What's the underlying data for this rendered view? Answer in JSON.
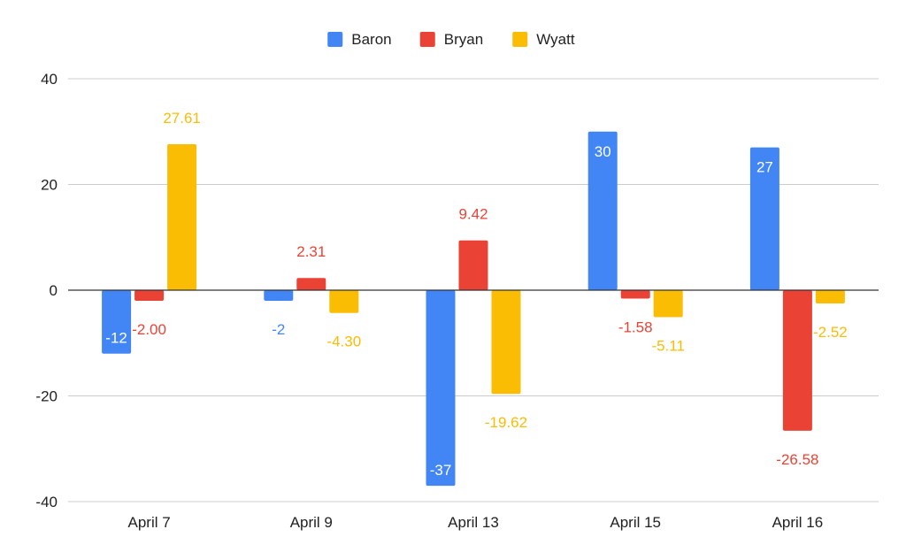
{
  "chart_data": {
    "type": "bar",
    "title": "",
    "xlabel": "",
    "ylabel": "",
    "categories": [
      "April 7",
      "April 9",
      "April 13",
      "April 15",
      "April 16"
    ],
    "series": [
      {
        "name": "Baron",
        "color": "#4285F4",
        "values": [
          -12,
          -2,
          -37,
          30,
          27
        ],
        "labels": [
          "-12",
          "-2",
          "-37",
          "30",
          "27"
        ],
        "label_color": [
          "#ffffff",
          "#4285F4",
          "#ffffff",
          "#ffffff",
          "#ffffff"
        ]
      },
      {
        "name": "Bryan",
        "color": "#EA4335",
        "values": [
          -2.0,
          2.31,
          9.42,
          -1.58,
          -26.58
        ],
        "labels": [
          "-2.00",
          "2.31",
          "9.42",
          "-1.58",
          "-26.58"
        ],
        "label_color": [
          "#EA4335",
          "#EA4335",
          "#EA4335",
          "#EA4335",
          "#EA4335"
        ]
      },
      {
        "name": "Wyatt",
        "color": "#FBBC04",
        "values": [
          27.61,
          -4.3,
          -19.62,
          -5.11,
          -2.52
        ],
        "labels": [
          "27.61",
          "-4.30",
          "-19.62",
          "-5.11",
          "-2.52"
        ],
        "label_color": [
          "#FBBC04",
          "#FBBC04",
          "#FBBC04",
          "#FBBC04",
          "#FBBC04"
        ]
      }
    ],
    "ylim": [
      -40,
      40
    ],
    "yticks": [
      -40,
      -20,
      0,
      20,
      40
    ],
    "ytick_labels": [
      "-40",
      "-20",
      "0",
      "20",
      "40"
    ],
    "grid": true,
    "legend_position": "top-center"
  }
}
